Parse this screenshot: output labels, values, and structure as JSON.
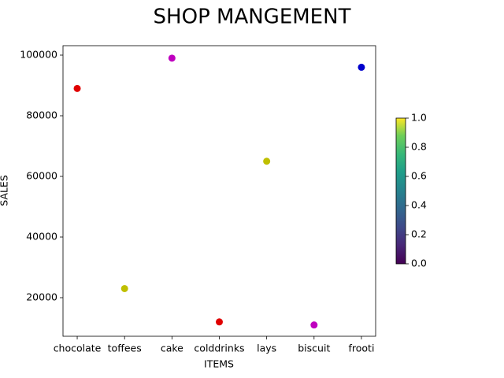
{
  "chart_data": {
    "type": "scatter",
    "title": "SHOP MANGEMENT",
    "xlabel": "ITEMS",
    "ylabel": "SALES",
    "categories": [
      "chocolate",
      "toffees",
      "cake",
      "colddrinks",
      "lays",
      "biscuit",
      "frooti"
    ],
    "values": [
      89000,
      23000,
      99000,
      12000,
      65000,
      11000,
      96000
    ],
    "colors": [
      "#e00000",
      "#bfbf00",
      "#bf00bf",
      "#e00000",
      "#bfbf00",
      "#bf00bf",
      "#0000cc"
    ],
    "ylim": [
      7273,
      103117
    ],
    "yticks": [
      20000,
      40000,
      60000,
      80000,
      100000
    ],
    "colorbar": {
      "colormap": "viridis",
      "lim": [
        0,
        1
      ],
      "ticks": [
        {
          "value": 0,
          "label": "0.0"
        },
        {
          "value": 0.2,
          "label": "0.2"
        },
        {
          "value": 0.4,
          "label": "0.4"
        },
        {
          "value": 0.6,
          "label": "0.6"
        },
        {
          "value": 0.8,
          "label": "0.8"
        },
        {
          "value": 1,
          "label": "1.0"
        }
      ]
    }
  }
}
